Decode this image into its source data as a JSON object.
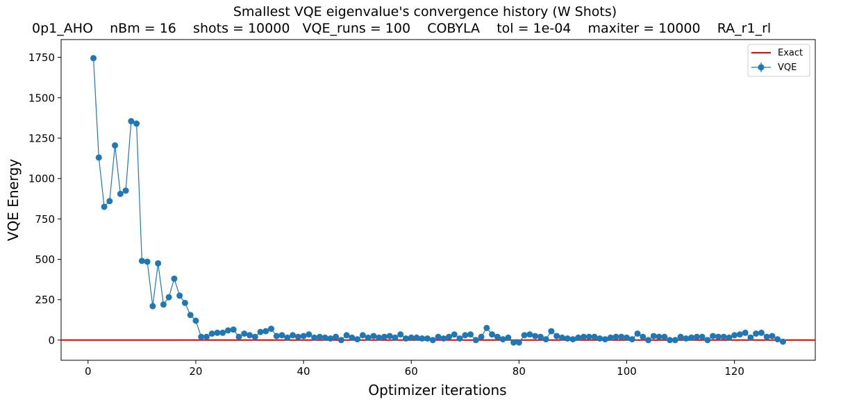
{
  "chart_data": {
    "type": "line",
    "title": "Smallest VQE eigenvalue's convergence history (W Shots)",
    "subtitle": "0p1_AHO    nBm = 16    shots = 10000   VQE_runs = 100    COBYLA    tol = 1e-04    maxiter = 10000    RA_r1_rl",
    "xlabel": "Optimizer iterations",
    "ylabel": "VQE Energy",
    "xlim": [
      -5,
      135
    ],
    "ylim": [
      -125,
      1860
    ],
    "xticks": [
      0,
      20,
      40,
      60,
      80,
      100,
      120
    ],
    "yticks": [
      0,
      250,
      500,
      750,
      1000,
      1250,
      1500,
      1750
    ],
    "grid": false,
    "legend_position": "top-right",
    "colors": {
      "exact": "#ff0000",
      "vqe": "#1f77b4"
    },
    "series": [
      {
        "name": "Exact",
        "type": "hline",
        "value": 0
      },
      {
        "name": "VQE",
        "type": "errorbar",
        "x": [
          1,
          2,
          3,
          4,
          5,
          6,
          7,
          8,
          9,
          10,
          11,
          12,
          13,
          14,
          15,
          16,
          17,
          18,
          19,
          20,
          21,
          22,
          23,
          24,
          25,
          26,
          27,
          28,
          29,
          30,
          31,
          32,
          33,
          34,
          35,
          36,
          37,
          38,
          39,
          40,
          41,
          42,
          43,
          44,
          45,
          46,
          47,
          48,
          49,
          50,
          51,
          52,
          53,
          54,
          55,
          56,
          57,
          58,
          59,
          60,
          61,
          62,
          63,
          64,
          65,
          66,
          67,
          68,
          69,
          70,
          71,
          72,
          73,
          74,
          75,
          76,
          77,
          78,
          79,
          80,
          81,
          82,
          83,
          84,
          85,
          86,
          87,
          88,
          89,
          90,
          91,
          92,
          93,
          94,
          95,
          96,
          97,
          98,
          99,
          100,
          101,
          102,
          103,
          104,
          105,
          106,
          107,
          108,
          109,
          110,
          111,
          112,
          113,
          114,
          115,
          116,
          117,
          118,
          119,
          120,
          121,
          122,
          123,
          124,
          125,
          126,
          127,
          128,
          129
        ],
        "y": [
          1745,
          1130,
          825,
          860,
          1205,
          905,
          925,
          1355,
          1340,
          490,
          485,
          210,
          475,
          220,
          265,
          380,
          275,
          230,
          155,
          120,
          20,
          20,
          40,
          45,
          45,
          60,
          65,
          20,
          40,
          30,
          20,
          50,
          55,
          70,
          25,
          30,
          15,
          30,
          20,
          25,
          35,
          15,
          20,
          15,
          10,
          20,
          0,
          30,
          15,
          5,
          30,
          15,
          25,
          15,
          20,
          25,
          15,
          35,
          10,
          15,
          15,
          10,
          10,
          0,
          20,
          10,
          20,
          35,
          10,
          30,
          35,
          0,
          20,
          75,
          35,
          20,
          5,
          15,
          -15,
          -15,
          30,
          35,
          25,
          20,
          5,
          55,
          25,
          15,
          10,
          5,
          15,
          20,
          20,
          20,
          10,
          5,
          15,
          20,
          20,
          15,
          5,
          40,
          20,
          0,
          25,
          20,
          20,
          0,
          0,
          20,
          10,
          15,
          20,
          20,
          0,
          25,
          20,
          20,
          15,
          30,
          35,
          45,
          15,
          40,
          45,
          20,
          25,
          5,
          -10
        ],
        "error": 10
      }
    ]
  }
}
